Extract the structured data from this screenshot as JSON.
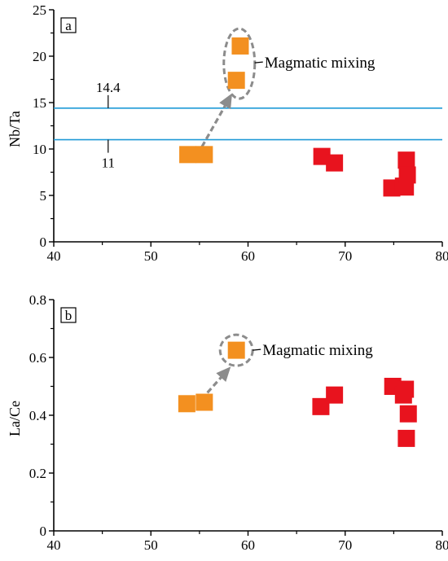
{
  "chart_data": [
    {
      "type": "scatter",
      "panel_label": "a",
      "ylabel": "Nb/Ta",
      "xlim": [
        40,
        80
      ],
      "ylim": [
        0,
        25
      ],
      "xticks": [
        40,
        50,
        60,
        70,
        80
      ],
      "yticks": [
        0,
        5,
        10,
        15,
        20,
        25
      ],
      "reference_lines": [
        {
          "y": 14.4,
          "label": "14.4",
          "color": "#1f9ad6"
        },
        {
          "y": 11,
          "label": "11",
          "color": "#1f9ad6"
        }
      ],
      "annotation": {
        "text": "Magmatic mixing",
        "target": [
          59.1,
          19.2
        ],
        "arrow_from": [
          54.8,
          9.4
        ],
        "arrow_to": [
          58.2,
          15.7
        ]
      },
      "series": [
        {
          "color": "#f39020",
          "points": [
            [
              53.8,
              9.4
            ],
            [
              55.5,
              9.4
            ],
            [
              58.8,
              17.4
            ],
            [
              59.2,
              21.1
            ]
          ]
        },
        {
          "color": "#e8131e",
          "points": [
            [
              67.6,
              9.2
            ],
            [
              68.9,
              8.5
            ],
            [
              74.8,
              5.8
            ],
            [
              76.0,
              6.0
            ],
            [
              76.2,
              5.9
            ],
            [
              76.3,
              8.8
            ],
            [
              76.4,
              7.2
            ]
          ]
        }
      ]
    },
    {
      "type": "scatter",
      "panel_label": "b",
      "ylabel": "La/Ce",
      "xlim": [
        40,
        80
      ],
      "ylim": [
        0,
        0.8
      ],
      "xticks": [
        40,
        50,
        60,
        70,
        80
      ],
      "yticks": [
        0,
        0.2,
        0.4,
        0.6,
        0.8
      ],
      "annotation": {
        "text": "Magmatic mixing",
        "target": [
          58.8,
          0.625
        ],
        "arrow_from": [
          55.2,
          0.455
        ],
        "arrow_to": [
          58.0,
          0.56
        ]
      },
      "series": [
        {
          "color": "#f39020",
          "points": [
            [
              53.7,
              0.44
            ],
            [
              55.5,
              0.445
            ],
            [
              58.8,
              0.625
            ]
          ]
        },
        {
          "color": "#e8131e",
          "points": [
            [
              67.5,
              0.43
            ],
            [
              68.9,
              0.47
            ],
            [
              74.9,
              0.5
            ],
            [
              76.0,
              0.47
            ],
            [
              76.2,
              0.49
            ],
            [
              76.5,
              0.405
            ],
            [
              76.3,
              0.32
            ]
          ]
        }
      ]
    }
  ]
}
